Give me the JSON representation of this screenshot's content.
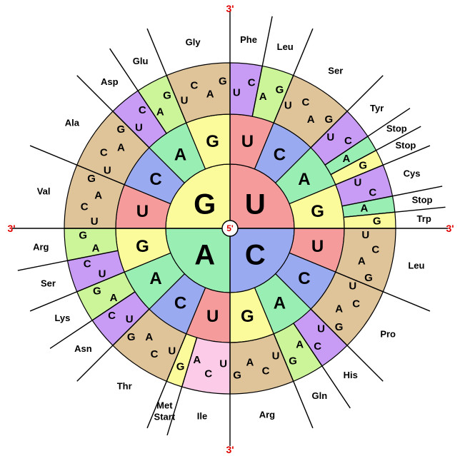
{
  "wheel": {
    "five_prime": "5'",
    "three_prime": [
      "3'",
      "3'",
      "3'",
      "3'"
    ],
    "first": [
      {
        "base": "U",
        "color": "#f59b9b",
        "second": [
          {
            "base": "U",
            "color": "#f59b9b",
            "acids": [
              {
                "names": [
                  "Phe"
                ],
                "color": "#c89cf5",
                "bases": [
                  "U",
                  "C"
                ]
              },
              {
                "names": [
                  "Leu"
                ],
                "color": "#ccf59a",
                "bases": [
                  "A",
                  "G"
                ]
              }
            ]
          },
          {
            "base": "C",
            "color": "#9aaaf0",
            "acids": [
              {
                "names": [
                  "Ser"
                ],
                "color": "#dfc49a",
                "bases": [
                  "U",
                  "C",
                  "A",
                  "G"
                ]
              }
            ]
          },
          {
            "base": "A",
            "color": "#99eeb4",
            "acids": [
              {
                "names": [
                  "Tyr"
                ],
                "color": "#c89cf5",
                "bases": [
                  "U",
                  "C"
                ]
              },
              {
                "names": [
                  "Stop"
                ],
                "color": "#99eeb4",
                "bases": [
                  "A"
                ]
              },
              {
                "names": [
                  "Stop"
                ],
                "color": "#fbfb9c",
                "bases": [
                  "G"
                ]
              }
            ]
          },
          {
            "base": "G",
            "color": "#fbfb9c",
            "acids": [
              {
                "names": [
                  "Cys"
                ],
                "color": "#c89cf5",
                "bases": [
                  "U",
                  "C"
                ]
              },
              {
                "names": [
                  "Stop"
                ],
                "color": "#99eeb4",
                "bases": [
                  "A"
                ]
              },
              {
                "names": [
                  "Trp"
                ],
                "color": "#fbfb9c",
                "bases": [
                  "G"
                ]
              }
            ]
          }
        ]
      },
      {
        "base": "C",
        "color": "#9aaaf0",
        "second": [
          {
            "base": "U",
            "color": "#f59b9b",
            "acids": [
              {
                "names": [
                  "Leu"
                ],
                "color": "#dfc49a",
                "bases": [
                  "U",
                  "C",
                  "A",
                  "G"
                ]
              }
            ]
          },
          {
            "base": "C",
            "color": "#9aaaf0",
            "acids": [
              {
                "names": [
                  "Pro"
                ],
                "color": "#dfc49a",
                "bases": [
                  "U",
                  "C",
                  "A",
                  "G"
                ]
              }
            ]
          },
          {
            "base": "A",
            "color": "#99eeb4",
            "acids": [
              {
                "names": [
                  "His"
                ],
                "color": "#c89cf5",
                "bases": [
                  "U",
                  "C"
                ]
              },
              {
                "names": [
                  "Gln"
                ],
                "color": "#ccf59a",
                "bases": [
                  "A",
                  "G"
                ]
              }
            ]
          },
          {
            "base": "G",
            "color": "#fbfb9c",
            "acids": [
              {
                "names": [
                  "Arg"
                ],
                "color": "#dfc49a",
                "bases": [
                  "U",
                  "C",
                  "A",
                  "G"
                ]
              }
            ]
          }
        ]
      },
      {
        "base": "A",
        "color": "#99eeb4",
        "second": [
          {
            "base": "U",
            "color": "#f59b9b",
            "acids": [
              {
                "names": [
                  "Ile"
                ],
                "color": "#fbcbe8",
                "bases": [
                  "U",
                  "C",
                  "A"
                ]
              },
              {
                "names": [
                  "Met",
                  "Start"
                ],
                "color": "#fbfb9c",
                "bases": [
                  "G"
                ]
              }
            ]
          },
          {
            "base": "C",
            "color": "#9aaaf0",
            "acids": [
              {
                "names": [
                  "Thr"
                ],
                "color": "#dfc49a",
                "bases": [
                  "U",
                  "C",
                  "A",
                  "G"
                ]
              }
            ]
          },
          {
            "base": "A",
            "color": "#99eeb4",
            "acids": [
              {
                "names": [
                  "Asn"
                ],
                "color": "#c89cf5",
                "bases": [
                  "U",
                  "C"
                ]
              },
              {
                "names": [
                  "Lys"
                ],
                "color": "#ccf59a",
                "bases": [
                  "A",
                  "G"
                ]
              }
            ]
          },
          {
            "base": "G",
            "color": "#fbfb9c",
            "acids": [
              {
                "names": [
                  "Ser"
                ],
                "color": "#c89cf5",
                "bases": [
                  "U",
                  "C"
                ]
              },
              {
                "names": [
                  "Arg"
                ],
                "color": "#ccf59a",
                "bases": [
                  "A",
                  "G"
                ]
              }
            ]
          }
        ]
      },
      {
        "base": "G",
        "color": "#fbfb9c",
        "second": [
          {
            "base": "U",
            "color": "#f59b9b",
            "acids": [
              {
                "names": [
                  "Val"
                ],
                "color": "#dfc49a",
                "bases": [
                  "U",
                  "C",
                  "A",
                  "G"
                ]
              }
            ]
          },
          {
            "base": "C",
            "color": "#9aaaf0",
            "acids": [
              {
                "names": [
                  "Ala"
                ],
                "color": "#dfc49a",
                "bases": [
                  "U",
                  "C",
                  "A",
                  "G"
                ]
              }
            ]
          },
          {
            "base": "A",
            "color": "#99eeb4",
            "acids": [
              {
                "names": [
                  "Asp"
                ],
                "color": "#c89cf5",
                "bases": [
                  "U",
                  "C"
                ]
              },
              {
                "names": [
                  "Glu"
                ],
                "color": "#ccf59a",
                "bases": [
                  "A",
                  "G"
                ]
              }
            ]
          },
          {
            "base": "G",
            "color": "#fbfb9c",
            "acids": [
              {
                "names": [
                  "Gly"
                ],
                "color": "#dfc49a",
                "bases": [
                  "U",
                  "C",
                  "A",
                  "G"
                ]
              }
            ]
          }
        ]
      }
    ]
  }
}
